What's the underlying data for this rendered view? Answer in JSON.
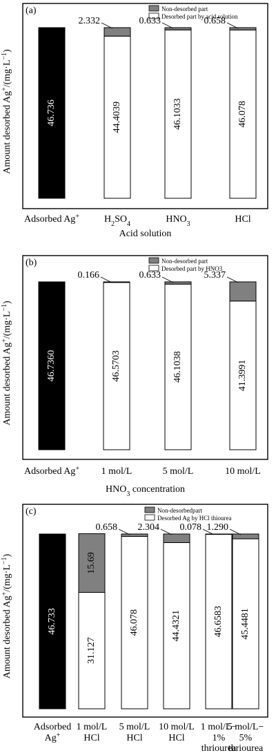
{
  "chart_data": [
    {
      "panel": "(a)",
      "type": "bar",
      "stacked": true,
      "categories": [
        "Adsorbed Ag+",
        "H2SO4",
        "HNO3",
        "HCl"
      ],
      "series": [
        {
          "name": "Non-desorbed part",
          "color": "#808080",
          "values": [
            null,
            2.332,
            0.633,
            0.658
          ],
          "labels": [
            "",
            "2.332",
            "0.633",
            "0.658"
          ]
        },
        {
          "name": "Desorbed part by acid solution",
          "color": "#ffffff",
          "values": [
            null,
            44.4039,
            46.1033,
            46.078
          ],
          "labels": [
            "",
            "44.4039",
            "46.1033",
            "46.078"
          ]
        }
      ],
      "adsorbed": {
        "value": 46.736,
        "label": "46.736",
        "color": "#000000"
      },
      "xlabel": "Acid solution",
      "ylabel": "Amount desorbed Ag+/(mg·L−1)",
      "ylim": [
        0,
        51
      ],
      "legend_position": "top-right"
    },
    {
      "panel": "(b)",
      "type": "bar",
      "stacked": true,
      "categories": [
        "Adsorbed Ag+",
        "1 mol/L",
        "5 mol/L",
        "10 mol/L"
      ],
      "series": [
        {
          "name": "Non-desorbed part",
          "color": "#808080",
          "values": [
            null,
            0.166,
            0.633,
            5.337
          ],
          "labels": [
            "",
            "0.166",
            "0.633",
            "5.337"
          ]
        },
        {
          "name": "Desorbed part by HNO3",
          "color": "#ffffff",
          "values": [
            null,
            46.5703,
            46.1038,
            41.3991
          ],
          "labels": [
            "",
            "46.5703",
            "46.1038",
            "41.3991"
          ]
        }
      ],
      "adsorbed": {
        "value": 46.736,
        "label": "46.7360",
        "color": "#000000"
      },
      "xlabel": "HNO3 concentration",
      "ylabel": "Amount desorbed Ag+/(mg·L−1)",
      "ylim": [
        0,
        51
      ],
      "legend_position": "top-right"
    },
    {
      "panel": "(c)",
      "type": "bar",
      "stacked": true,
      "categories": [
        "Adsorbed Ag+",
        "1 mol/L HCl",
        "5 mol/L HCl",
        "10 mol/L HCl",
        "1 mol/L−1% thriourea",
        "5 mol/L−5% thriourea"
      ],
      "series": [
        {
          "name": "Non-desorbedpart",
          "color": "#808080",
          "values": [
            null,
            15.69,
            0.658,
            2.304,
            0.078,
            1.29
          ],
          "labels": [
            "",
            "15.69",
            "0.658",
            "2.304",
            "0.078",
            "1.290"
          ]
        },
        {
          "name": "Desorbed Ag by HCl thiourea",
          "color": "#ffffff",
          "values": [
            null,
            31.127,
            46.078,
            44.4321,
            46.6583,
            45.4481
          ],
          "labels": [
            "",
            "31.127",
            "46.078",
            "44.4321",
            "46.6583",
            "45.4481"
          ]
        }
      ],
      "adsorbed": {
        "value": 46.733,
        "label": "46.733",
        "color": "#000000"
      },
      "xlabel": "",
      "ylabel": "Amount desorbed Ag+/(mg·L−1)",
      "ylim": [
        0,
        51
      ],
      "legend_position": "top-right"
    }
  ],
  "panels": [
    {
      "tag": "(a)",
      "legend": [
        "Non-desorbed part",
        "Desorbed part by acid solution"
      ],
      "ylabel": {
        "main": "Amount desorbed Ag",
        "sup": "+",
        "mid": "/(mg·L",
        "sup2": "−1",
        "end": ")"
      },
      "xlabel": {
        "main": "Acid solution",
        "sub": ""
      },
      "ticks": [
        {
          "main": "Adsorbed Ag",
          "sup": "+",
          "line2": ""
        },
        {
          "main": "H",
          "sub": "2",
          "mid": "SO",
          "sub2": "4",
          "line2": ""
        },
        {
          "main": "HNO",
          "sub": "3",
          "line2": ""
        },
        {
          "main": "HCl",
          "line2": ""
        }
      ]
    },
    {
      "tag": "(b)",
      "legend": [
        "Non-desorbed part",
        "Desorbed part by HNO3"
      ],
      "ylabel": {
        "main": "Amount desorbed Ag",
        "sup": "+",
        "mid": "/(mg·L",
        "sup2": "−1",
        "end": ")"
      },
      "xlabel": {
        "main": "HNO",
        "sub": "3",
        "end": " concentration"
      },
      "ticks": [
        {
          "main": "Adsorbed Ag",
          "sup": "+",
          "line2": ""
        },
        {
          "main": "1 mol/L",
          "line2": ""
        },
        {
          "main": "5 mol/L",
          "line2": ""
        },
        {
          "main": "10 mol/L",
          "line2": ""
        }
      ]
    },
    {
      "tag": "(c)",
      "legend": [
        "Non-desorbedpart",
        "Desorbed Ag by HCl thiourea"
      ],
      "ylabel": {
        "main": "Amount desorbed Ag",
        "sup": "+",
        "mid": "/(mg·L",
        "sup2": "−1",
        "end": ")"
      },
      "xlabel": {
        "main": "",
        "sub": ""
      },
      "ticks": [
        {
          "main": "Adsorbed",
          "line2": "Ag",
          "sup2": "+"
        },
        {
          "main": "1 mol/L",
          "line2": "HCl"
        },
        {
          "main": "5 mol/L",
          "line2": "HCl"
        },
        {
          "main": "10 mol/L",
          "line2": "HCl"
        },
        {
          "main": "1 mol/L−",
          "line2": "1%",
          "line3": "thriourea"
        },
        {
          "main": "5 mol/L−",
          "line2": "5%",
          "line3": "thriourea"
        }
      ]
    }
  ]
}
